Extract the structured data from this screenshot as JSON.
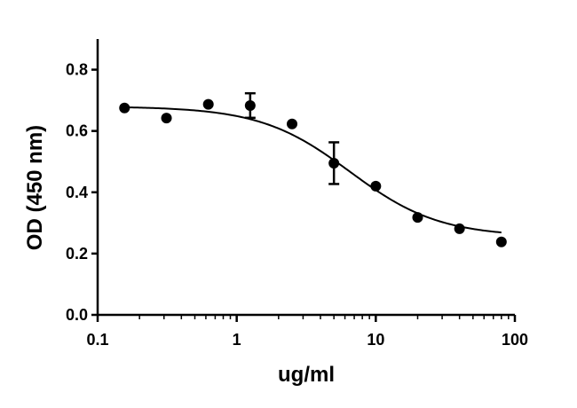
{
  "chart_data": {
    "type": "scatter",
    "xlabel": "ug/ml",
    "ylabel": "OD (450 nm)",
    "xscale": "log",
    "xlim": [
      0.1,
      100
    ],
    "ylim": [
      0.0,
      0.9
    ],
    "x_ticks": [
      0.1,
      1,
      10,
      100
    ],
    "x_tick_labels": [
      "0.1",
      "1",
      "10",
      "100"
    ],
    "y_ticks": [
      0.0,
      0.2,
      0.4,
      0.6,
      0.8
    ],
    "y_tick_labels": [
      "0.0",
      "0.2",
      "0.4",
      "0.6",
      "0.8"
    ],
    "grid": false,
    "points": [
      {
        "x": 0.156,
        "y": 0.675
      },
      {
        "x": 0.3125,
        "y": 0.642
      },
      {
        "x": 0.625,
        "y": 0.687
      },
      {
        "x": 1.25,
        "y": 0.683,
        "err": 0.04
      },
      {
        "x": 2.5,
        "y": 0.623
      },
      {
        "x": 5,
        "y": 0.495,
        "err": 0.068
      },
      {
        "x": 10,
        "y": 0.42
      },
      {
        "x": 20,
        "y": 0.318
      },
      {
        "x": 40,
        "y": 0.281
      },
      {
        "x": 80,
        "y": 0.238
      }
    ],
    "fit": {
      "model": "4PL",
      "top": 0.68,
      "bottom": 0.255,
      "ec50": 6.5,
      "hill": 1.35
    },
    "colors": {
      "marker": "#000000",
      "line": "#000000",
      "axis": "#000000"
    }
  }
}
